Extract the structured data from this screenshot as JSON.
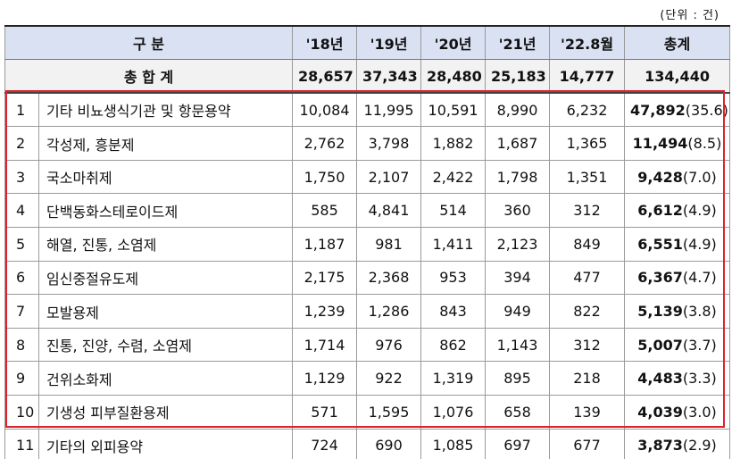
{
  "unit_note": "(단위 : 건)",
  "header": {
    "category": "구 분",
    "years": [
      "'18년",
      "'19년",
      "'20년",
      "'21년",
      "'22.8월"
    ],
    "total": "총계"
  },
  "total_row": {
    "label": "총 합 계",
    "values": [
      "28,657",
      "37,343",
      "28,480",
      "25,183",
      "14,777"
    ],
    "sum": "134,440"
  },
  "rows": [
    {
      "rank": "1",
      "name": "기타 비뇨생식기관 및 항문용약",
      "values": [
        "10,084",
        "11,995",
        "10,591",
        "8,990",
        "6,232"
      ],
      "sum": "47,892",
      "share": "(35.6)"
    },
    {
      "rank": "2",
      "name": "각성제, 흥분제",
      "values": [
        "2,762",
        "3,798",
        "1,882",
        "1,687",
        "1,365"
      ],
      "sum": "11,494",
      "share": "(8.5)"
    },
    {
      "rank": "3",
      "name": "국소마취제",
      "values": [
        "1,750",
        "2,107",
        "2,422",
        "1,798",
        "1,351"
      ],
      "sum": "9,428",
      "share": "(7.0)"
    },
    {
      "rank": "4",
      "name": "단백동화스테로이드제",
      "values": [
        "585",
        "4,841",
        "514",
        "360",
        "312"
      ],
      "sum": "6,612",
      "share": "(4.9)"
    },
    {
      "rank": "5",
      "name": "해열, 진통, 소염제",
      "values": [
        "1,187",
        "981",
        "1,411",
        "2,123",
        "849"
      ],
      "sum": "6,551",
      "share": "(4.9)"
    },
    {
      "rank": "6",
      "name": "임신중절유도제",
      "values": [
        "2,175",
        "2,368",
        "953",
        "394",
        "477"
      ],
      "sum": "6,367",
      "share": "(4.7)"
    },
    {
      "rank": "7",
      "name": "모발용제",
      "values": [
        "1,239",
        "1,286",
        "843",
        "949",
        "822"
      ],
      "sum": "5,139",
      "share": "(3.8)"
    },
    {
      "rank": "8",
      "name": "진통, 진양, 수렴, 소염제",
      "values": [
        "1,714",
        "976",
        "862",
        "1,143",
        "312"
      ],
      "sum": "5,007",
      "share": "(3.7)"
    },
    {
      "rank": "9",
      "name": "건위소화제",
      "values": [
        "1,129",
        "922",
        "1,319",
        "895",
        "218"
      ],
      "sum": "4,483",
      "share": "(3.3)"
    },
    {
      "rank": "10",
      "name": "기생성 피부질환용제",
      "values": [
        "571",
        "1,595",
        "1,076",
        "658",
        "139"
      ],
      "sum": "4,039",
      "share": "(3.0)"
    },
    {
      "rank": "11",
      "name": "기타의 외피용약",
      "values": [
        "724",
        "690",
        "1,085",
        "697",
        "677"
      ],
      "sum": "3,873",
      "share": "(2.9)"
    }
  ],
  "highlight_color": "#d9232d",
  "header_bg": "#d9e1f2"
}
